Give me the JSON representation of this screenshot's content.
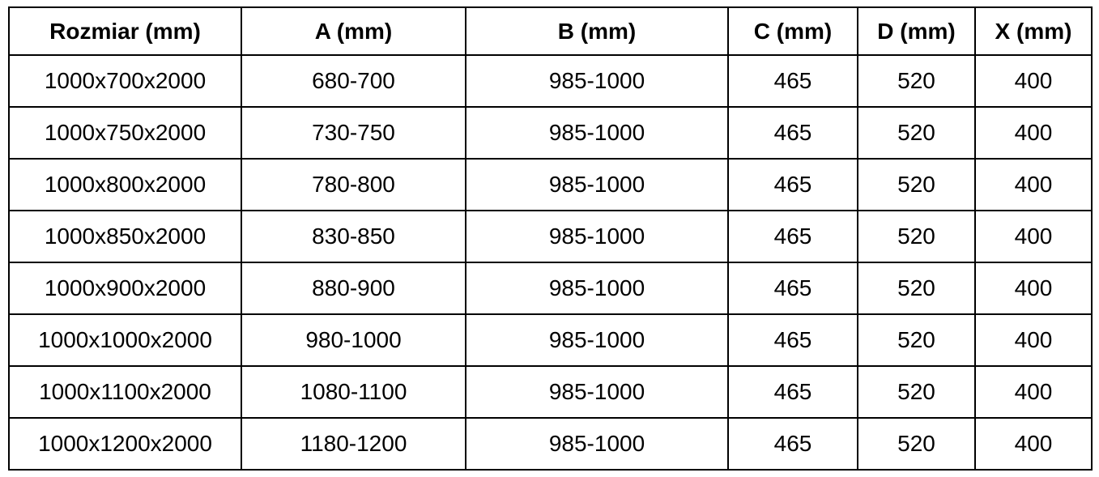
{
  "table": {
    "columns": [
      "Rozmiar (mm)",
      "A (mm)",
      "B (mm)",
      "C (mm)",
      "D (mm)",
      "X (mm)"
    ],
    "rows": [
      [
        "1000x700x2000",
        "680-700",
        "985-1000",
        "465",
        "520",
        "400"
      ],
      [
        "1000x750x2000",
        "730-750",
        "985-1000",
        "465",
        "520",
        "400"
      ],
      [
        "1000x800x2000",
        "780-800",
        "985-1000",
        "465",
        "520",
        "400"
      ],
      [
        "1000x850x2000",
        "830-850",
        "985-1000",
        "465",
        "520",
        "400"
      ],
      [
        "1000x900x2000",
        "880-900",
        "985-1000",
        "465",
        "520",
        "400"
      ],
      [
        "1000x1000x2000",
        "980-1000",
        "985-1000",
        "465",
        "520",
        "400"
      ],
      [
        "1000x1100x2000",
        "1080-1100",
        "985-1000",
        "465",
        "520",
        "400"
      ],
      [
        "1000x1200x2000",
        "1180-1200",
        "985-1000",
        "465",
        "520",
        "400"
      ]
    ],
    "border_color": "#000000",
    "text_color": "#000000",
    "background_color": "#ffffff"
  }
}
